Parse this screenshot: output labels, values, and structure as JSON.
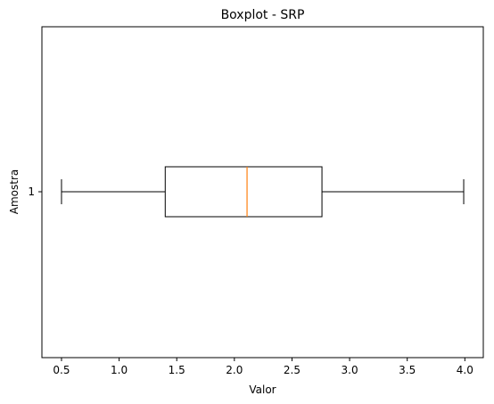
{
  "chart_data": {
    "type": "boxplot",
    "title": "Boxplot - SRP",
    "xlabel": "Valor",
    "ylabel": "Amostra",
    "xlim": [
      0.33,
      4.16
    ],
    "x_ticks": [
      0.5,
      1.0,
      1.5,
      2.0,
      2.5,
      3.0,
      3.5,
      4.0
    ],
    "x_tick_labels": [
      "0.5",
      "1.0",
      "1.5",
      "2.0",
      "2.5",
      "3.0",
      "3.5",
      "4.0"
    ],
    "y_ticks": [
      1
    ],
    "y_tick_labels": [
      "1"
    ],
    "orientation": "horizontal",
    "grid": false,
    "colors": {
      "box": "#000000",
      "median": "#ff7f0e",
      "background": "#ffffff"
    },
    "series": [
      {
        "category": "1",
        "whisker_low": 0.5,
        "q1": 1.4,
        "median": 2.11,
        "q3": 2.76,
        "whisker_high": 3.99
      }
    ]
  }
}
